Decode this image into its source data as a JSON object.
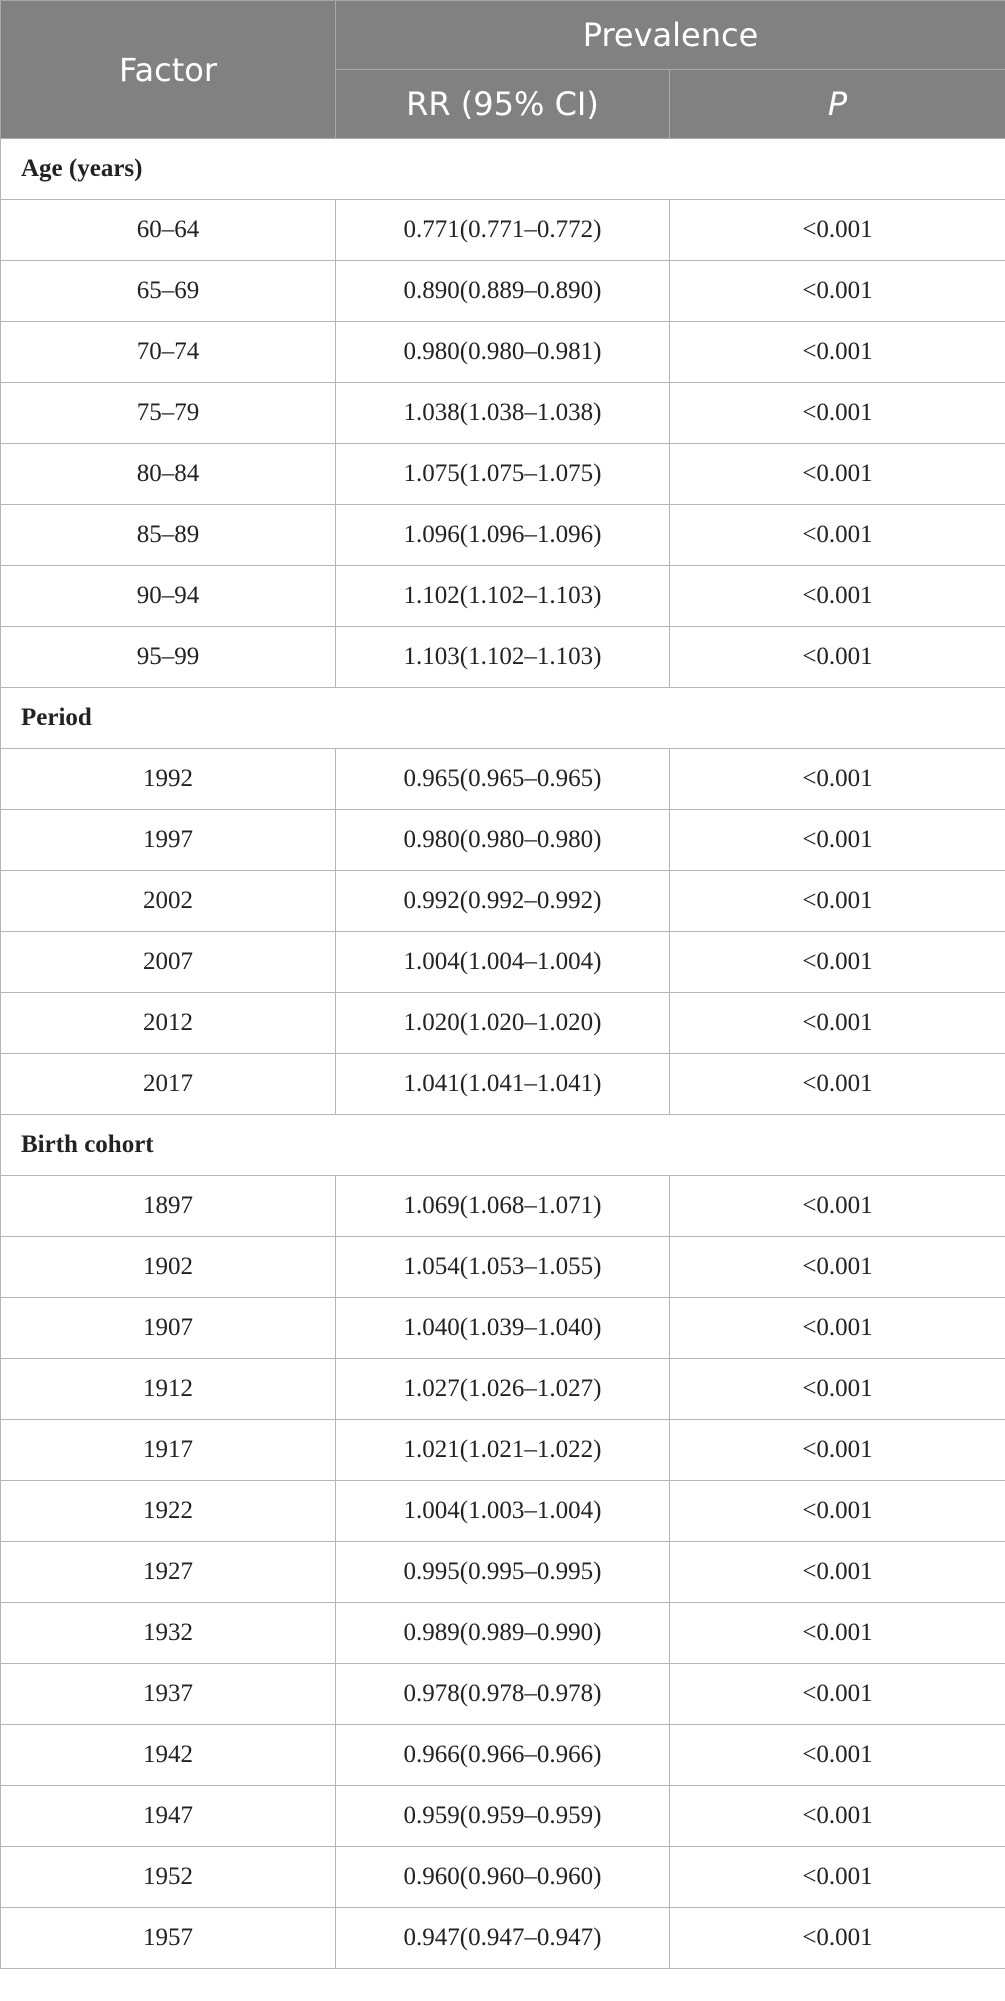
{
  "header": {
    "factor": "Factor",
    "prevalence": "Prevalence",
    "rr": "RR (95% CI)",
    "p": "P"
  },
  "sections": [
    {
      "title": "Age (years)",
      "rows": [
        [
          "60–64",
          "0.771(0.771–0.772)",
          "<0.001"
        ],
        [
          "65–69",
          "0.890(0.889–0.890)",
          "<0.001"
        ],
        [
          "70–74",
          "0.980(0.980–0.981)",
          "<0.001"
        ],
        [
          "75–79",
          "1.038(1.038–1.038)",
          "<0.001"
        ],
        [
          "80–84",
          "1.075(1.075–1.075)",
          "<0.001"
        ],
        [
          "85–89",
          "1.096(1.096–1.096)",
          "<0.001"
        ],
        [
          "90–94",
          "1.102(1.102–1.103)",
          "<0.001"
        ],
        [
          "95–99",
          "1.103(1.102–1.103)",
          "<0.001"
        ]
      ]
    },
    {
      "title": "Period",
      "rows": [
        [
          "1992",
          "0.965(0.965–0.965)",
          "<0.001"
        ],
        [
          "1997",
          "0.980(0.980–0.980)",
          "<0.001"
        ],
        [
          "2002",
          "0.992(0.992–0.992)",
          "<0.001"
        ],
        [
          "2007",
          "1.004(1.004–1.004)",
          "<0.001"
        ],
        [
          "2012",
          "1.020(1.020–1.020)",
          "<0.001"
        ],
        [
          "2017",
          "1.041(1.041–1.041)",
          "<0.001"
        ]
      ]
    },
    {
      "title": "Birth cohort",
      "rows": [
        [
          "1897",
          "1.069(1.068–1.071)",
          "<0.001"
        ],
        [
          "1902",
          "1.054(1.053–1.055)",
          "<0.001"
        ],
        [
          "1907",
          "1.040(1.039–1.040)",
          "<0.001"
        ],
        [
          "1912",
          "1.027(1.026–1.027)",
          "<0.001"
        ],
        [
          "1917",
          "1.021(1.021–1.022)",
          "<0.001"
        ],
        [
          "1922",
          "1.004(1.003–1.004)",
          "<0.001"
        ],
        [
          "1927",
          "0.995(0.995–0.995)",
          "<0.001"
        ],
        [
          "1932",
          "0.989(0.989–0.990)",
          "<0.001"
        ],
        [
          "1937",
          "0.978(0.978–0.978)",
          "<0.001"
        ],
        [
          "1942",
          "0.966(0.966–0.966)",
          "<0.001"
        ],
        [
          "1947",
          "0.959(0.959–0.959)",
          "<0.001"
        ],
        [
          "1952",
          "0.960(0.960–0.960)",
          "<0.001"
        ],
        [
          "1957",
          "0.947(0.947–0.947)",
          "<0.001"
        ]
      ]
    }
  ]
}
